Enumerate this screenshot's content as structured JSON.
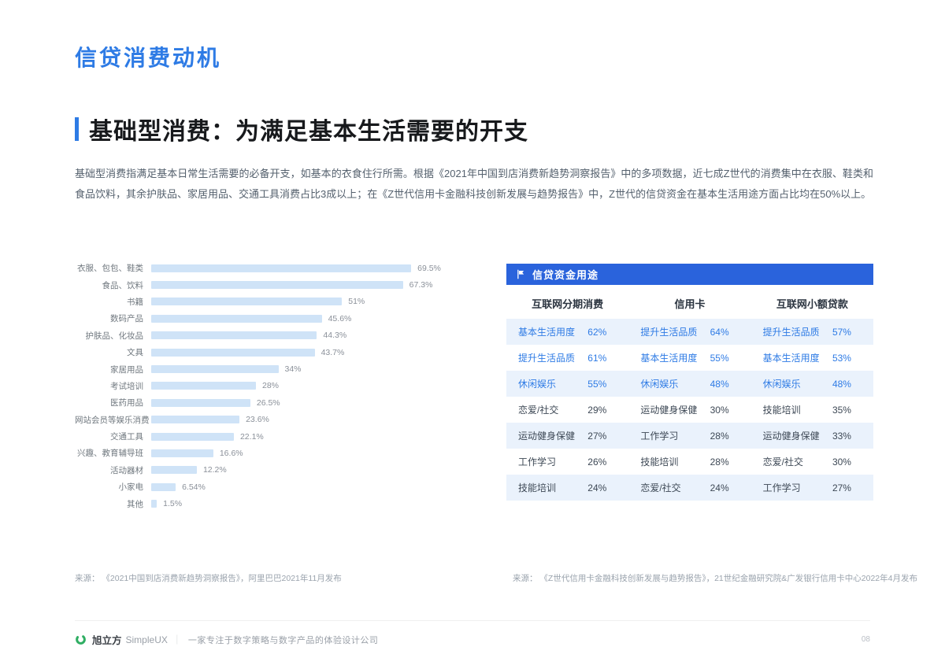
{
  "colors": {
    "accent_blue": "#2E7BE5",
    "table_header_bg": "#2A63DC",
    "bar_fill": "#CFE3F7",
    "row_stripe": "#EAF2FC",
    "logo_green": "#2FAE63"
  },
  "header": {
    "title": "信贷消费动机",
    "section_title": "基础型消费：为满足基本生活需要的开支",
    "paragraph": "基础型消费指满足基本日常生活需要的必备开支，如基本的衣食住行所需。根据《2021年中国到店消费新趋势洞察报告》中的多项数据，近七成Z世代的消费集中在衣服、鞋类和食品饮料，其余护肤品、家居用品、交通工具消费占比3成以上；在《Z世代信用卡金融科技创新发展与趋势报告》中，Z世代的信贷资金在基本生活用途方面占比均在50%以上。"
  },
  "chart_data": {
    "type": "bar",
    "orientation": "horizontal",
    "title": "",
    "categories": [
      "衣服、包包、鞋类",
      "食品、饮料",
      "书籍",
      "数码产品",
      "护肤品、化妆品",
      "文具",
      "家居用品",
      "考试培训",
      "医药用品",
      "网站会员等娱乐消费",
      "交通工具",
      "兴趣、教育辅导班",
      "活动器材",
      "小家电",
      "其他"
    ],
    "values": [
      69.5,
      67.3,
      51,
      45.6,
      44.3,
      43.7,
      34,
      28,
      26.5,
      23.6,
      22.1,
      16.6,
      12.2,
      6.54,
      1.5
    ],
    "value_labels": [
      "69.5%",
      "67.3%",
      "51%",
      "45.6%",
      "44.3%",
      "43.7%",
      "34%",
      "28%",
      "26.5%",
      "23.6%",
      "22.1%",
      "16.6%",
      "12.2%",
      "6.54%",
      "1.5%"
    ],
    "xlim": [
      0,
      75
    ],
    "grid": false,
    "legend": false,
    "source": "来源： 《2021中国到店消费新趋势洞察报告》，阿里巴巴2021年11月发布"
  },
  "table": {
    "header": "信贷资金用途",
    "columns": [
      "互联网分期消费",
      "信用卡",
      "互联网小额贷款"
    ],
    "emphasized_rows": 3,
    "rows": [
      [
        {
          "label": "基本生活用度",
          "value": "62%"
        },
        {
          "label": "提升生活品质",
          "value": "64%"
        },
        {
          "label": "提升生活品质",
          "value": "57%"
        }
      ],
      [
        {
          "label": "提升生活品质",
          "value": "61%"
        },
        {
          "label": "基本生活用度",
          "value": "55%"
        },
        {
          "label": "基本生活用度",
          "value": "53%"
        }
      ],
      [
        {
          "label": "休闲娱乐",
          "value": "55%"
        },
        {
          "label": "休闲娱乐",
          "value": "48%"
        },
        {
          "label": "休闲娱乐",
          "value": "48%"
        }
      ],
      [
        {
          "label": "恋爱/社交",
          "value": "29%"
        },
        {
          "label": "运动健身保健",
          "value": "30%"
        },
        {
          "label": "技能培训",
          "value": "35%"
        }
      ],
      [
        {
          "label": "运动健身保健",
          "value": "27%"
        },
        {
          "label": "工作学习",
          "value": "28%"
        },
        {
          "label": "运动健身保健",
          "value": "33%"
        }
      ],
      [
        {
          "label": "工作学习",
          "value": "26%"
        },
        {
          "label": "技能培训",
          "value": "28%"
        },
        {
          "label": "恋爱/社交",
          "value": "30%"
        }
      ],
      [
        {
          "label": "技能培训",
          "value": "24%"
        },
        {
          "label": "恋爱/社交",
          "value": "24%"
        },
        {
          "label": "工作学习",
          "value": "27%"
        }
      ]
    ],
    "source": "来源： 《Z世代信用卡金融科技创新发展与趋势报告》，21世纪金融研究院&广发银行信用卡中心2022年4月发布"
  },
  "footer": {
    "brand": "旭立方",
    "brand_en": "SimpleUX",
    "separator": "｜",
    "tagline": "一家专注于数字策略与数字产品的体验设计公司",
    "page_number": "08"
  }
}
